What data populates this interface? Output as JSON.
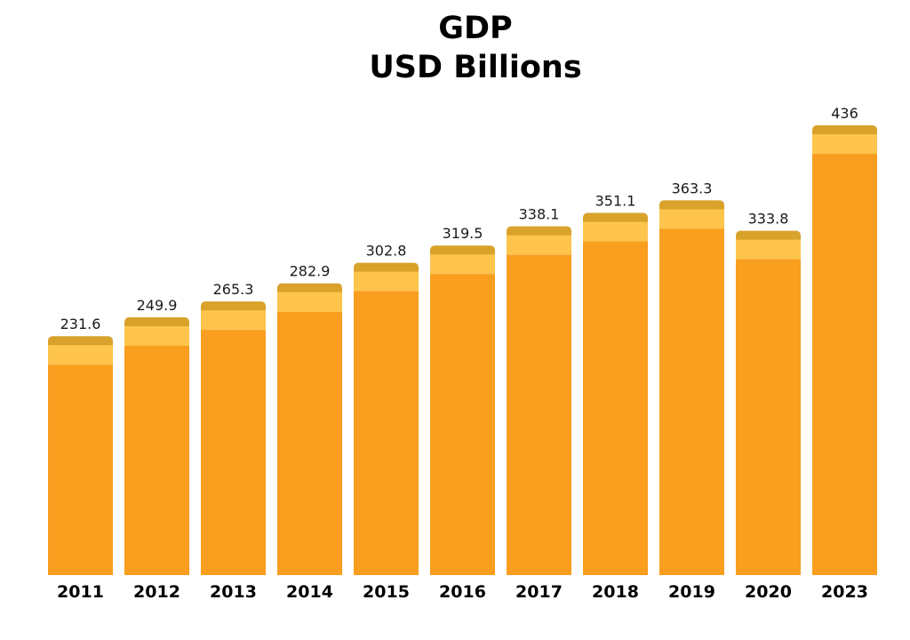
{
  "chart_data": {
    "type": "bar",
    "title": "GDP",
    "subtitle": "USD Billions",
    "xlabel": "",
    "ylabel": "",
    "categories": [
      "2011",
      "2012",
      "2013",
      "2014",
      "2015",
      "2016",
      "2017",
      "2018",
      "2019",
      "2020",
      "2023"
    ],
    "values": [
      231.6,
      249.9,
      265.3,
      282.9,
      302.8,
      319.5,
      338.1,
      351.1,
      363.3,
      333.8,
      436
    ],
    "value_labels": [
      "231.6",
      "249.9",
      "265.3",
      "282.9",
      "302.8",
      "319.5",
      "338.1",
      "351.1",
      "363.3",
      "333.8",
      "436"
    ],
    "ylim": [
      0,
      436
    ],
    "grid": false,
    "legend": "none",
    "colors": {
      "bar_body": "#F99E1E",
      "bar_band": "#FEC44C",
      "bar_cap": "#D8A22B",
      "value_text": "#1a1a1a",
      "axis_text": "#000000"
    }
  }
}
